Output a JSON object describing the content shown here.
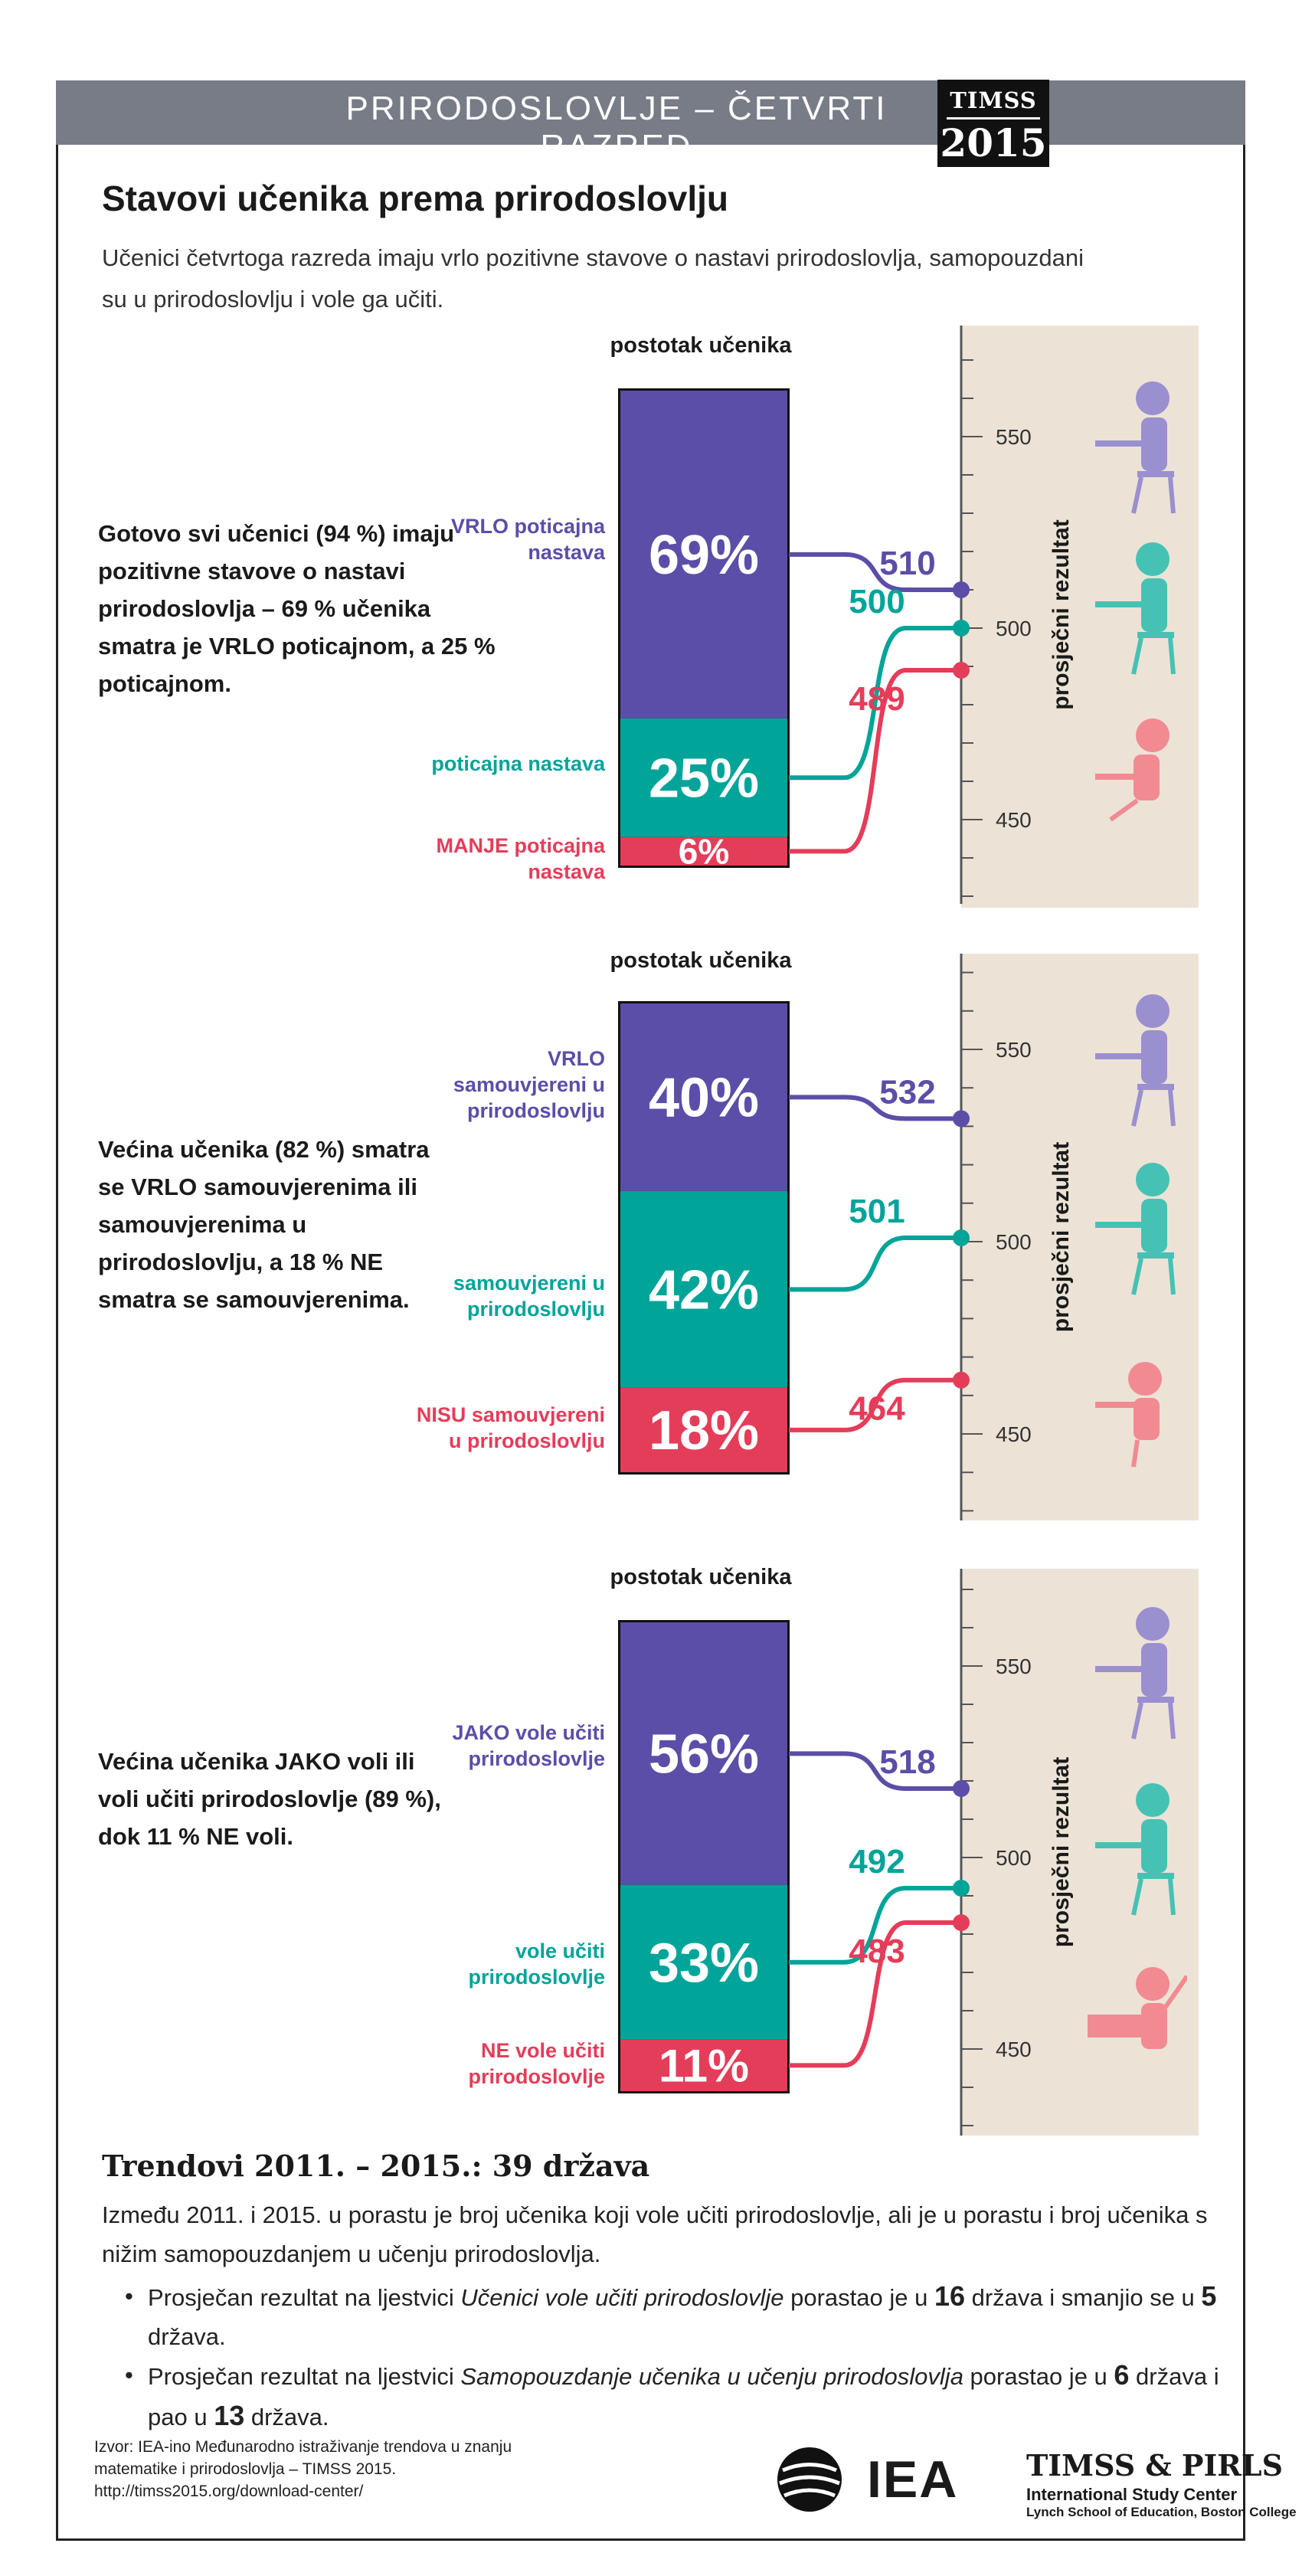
{
  "header": {
    "banner": "PRIRODOSLOVLJE – ČETVRTI RAZRED",
    "logo_top": "TIMSS",
    "logo_year": "2015"
  },
  "title": "Stavovi učenika prema prirodoslovlju",
  "subtitle": "Učenici četvrtoga razreda imaju vrlo pozitivne stavove o nastavi prirodoslovlja, samopouzdani su u prirodoslovlju i vole ga učiti.",
  "colors": {
    "top": "#5b4ea8",
    "middle": "#00a499",
    "bottom": "#e43d5a",
    "panel": "#ece3d6",
    "axis": "#555555"
  },
  "chart_data": [
    {
      "type": "bar",
      "percent_label": "postotak učenika",
      "axis_label": "prosječni rezultat",
      "axis_ticks": [
        550,
        500,
        450
      ],
      "description": "Gotovo svi učenici (94 %) imaju pozitivne stavove o nastavi prirodoslovlja – 69 % učenika smatra je VRLO poticajnom, a 25 % poticajnom.",
      "categories": [
        {
          "label": "VRLO poticajna nastava",
          "percent": 69,
          "percent_text": "69%",
          "score": 510,
          "score_text": "510",
          "color": "top"
        },
        {
          "label": "poticajna nastava",
          "percent": 25,
          "percent_text": "25%",
          "score": 500,
          "score_text": "500",
          "color": "middle"
        },
        {
          "label": "MANJE poticajna nastava",
          "percent": 6,
          "percent_text": "6%",
          "score": 489,
          "score_text": "489",
          "color": "bottom"
        }
      ]
    },
    {
      "type": "bar",
      "percent_label": "postotak učenika",
      "axis_label": "prosječni rezultat",
      "axis_ticks": [
        550,
        500,
        450
      ],
      "description": "Većina učenika (82 %) smatra se VRLO samouvjerenima ili samouvjerenima u prirodoslovlju, a 18 % NE smatra se samouvjerenima.",
      "categories": [
        {
          "label": "VRLO samouvjereni u prirodoslovlju",
          "percent": 40,
          "percent_text": "40%",
          "score": 532,
          "score_text": "532",
          "color": "top"
        },
        {
          "label": "samouvjereni u prirodoslovlju",
          "percent": 42,
          "percent_text": "42%",
          "score": 501,
          "score_text": "501",
          "color": "middle"
        },
        {
          "label": "NISU samouvjereni u prirodoslovlju",
          "percent": 18,
          "percent_text": "18%",
          "score": 464,
          "score_text": "464",
          "color": "bottom"
        }
      ]
    },
    {
      "type": "bar",
      "percent_label": "postotak učenika",
      "axis_label": "prosječni rezultat",
      "axis_ticks": [
        550,
        500,
        450
      ],
      "description": "Većina učenika JAKO voli ili voli učiti prirodoslovlje (89 %), dok 11 % NE voli.",
      "categories": [
        {
          "label": "JAKO vole učiti prirodoslovlje",
          "percent": 56,
          "percent_text": "56%",
          "score": 518,
          "score_text": "518",
          "color": "top"
        },
        {
          "label": "vole učiti prirodoslovlje",
          "percent": 33,
          "percent_text": "33%",
          "score": 492,
          "score_text": "492",
          "color": "middle"
        },
        {
          "label": "NE vole učiti prirodoslovlje",
          "percent": 11,
          "percent_text": "11%",
          "score": 483,
          "score_text": "483",
          "color": "bottom"
        }
      ]
    }
  ],
  "trends": {
    "title": "Trendovi 2011. – 2015.: 39 država",
    "text": "Između 2011. i 2015. u porastu je broj učenika koji vole učiti prirodoslovlje, ali je u porastu i broj učenika s nižim samopouzdanjem u učenju prirodoslovlja.",
    "bullets": [
      {
        "pre": "Prosječan rezultat na ljestvici ",
        "italic": "Učenici vole učiti prirodoslovlje",
        "mid1": " porastao je u ",
        "n1": "16",
        "mid2": " država i smanjio se u ",
        "n2": "5",
        "post": " država."
      },
      {
        "pre": "Prosječan rezultat na ljestvici ",
        "italic": "Samopouzdanje učenika u učenju prirodoslovlja",
        "mid1": " porastao je u ",
        "n1": "6",
        "mid2": " država i pao u ",
        "n2": "13",
        "post": " država."
      }
    ]
  },
  "source": {
    "line1": "Izvor: IEA-ino Međunarodno istraživanje trendova u znanju",
    "line2": "matematike i prirodoslovlja – TIMSS 2015.",
    "line3": "http://timss2015.org/download-center/"
  },
  "footer": {
    "iea": "IEA",
    "timss_pirls": "TIMSS & PIRLS",
    "isc": "International Study Center",
    "lynch": "Lynch School of Education, Boston College"
  }
}
